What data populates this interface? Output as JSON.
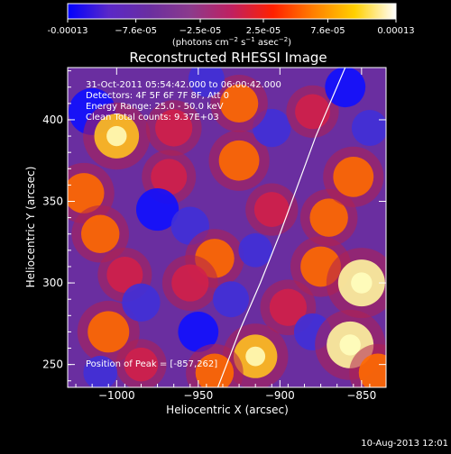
{
  "colorbar": {
    "tick_labels": [
      "-0.00013",
      "−7.6e-05",
      "−2.5e-05",
      "2.5e-05",
      "7.6e-05",
      "0.00013"
    ],
    "tick_values": [
      -0.00013,
      -7.6e-05,
      -2.5e-05,
      2.5e-05,
      7.6e-05,
      0.00013
    ],
    "range": [
      -0.00013,
      0.00013
    ],
    "units_prefix": "(photons cm",
    "units_exp1": "−2",
    "units_mid": " s",
    "units_exp2": "−1",
    "units_mid2": " asec",
    "units_exp3": "−2",
    "units_suffix": ")",
    "colors": [
      "#0000ff",
      "#5a28c8",
      "#6a2ea0",
      "#8c3a8c",
      "#c02060",
      "#ff2000",
      "#ff8000",
      "#ffd000",
      "#ffffff"
    ]
  },
  "chart_data": {
    "type": "heatmap",
    "title": "Reconstructed RHESSI Image",
    "xlabel": "Heliocentric X (arcsec)",
    "ylabel": "Heliocentric Y (arcsec)",
    "xlim": [
      -1030,
      -835
    ],
    "ylim": [
      236,
      432
    ],
    "x_ticks": [
      -1000,
      -950,
      -900,
      -850
    ],
    "x_tick_labels": [
      "−1000",
      "−950",
      "−900",
      "−850"
    ],
    "y_ticks": [
      250,
      300,
      350,
      400
    ],
    "y_tick_labels": [
      "250",
      "300",
      "350",
      "400"
    ],
    "annotations": [
      "31-Oct-2011 05:54:42.000 to 06:00:42.000",
      "Detectors: 4F 5F 6F 7F 8F, Att 0",
      "Energy Range: 25.0 - 50.0 keV",
      "Clean     Total counts: 9.37E+03"
    ],
    "peak_text": "Position of Peak = [-857,262]",
    "peak": [
      -857,
      262
    ],
    "limb_curve": [
      [
        -938,
        236
      ],
      [
        -925,
        270
      ],
      [
        -912,
        300
      ],
      [
        -900,
        330
      ],
      [
        -889,
        360
      ],
      [
        -878,
        390
      ],
      [
        -866,
        418
      ],
      [
        -860,
        432
      ]
    ],
    "blobs": [
      {
        "x": -1015,
        "y": 405,
        "a": -1.0
      },
      {
        "x": -1000,
        "y": 390,
        "a": 0.9
      },
      {
        "x": -1020,
        "y": 355,
        "a": 0.7
      },
      {
        "x": -1010,
        "y": 330,
        "a": 0.6
      },
      {
        "x": -995,
        "y": 305,
        "a": 0.5
      },
      {
        "x": -1005,
        "y": 270,
        "a": 0.75
      },
      {
        "x": -985,
        "y": 250,
        "a": 0.4
      },
      {
        "x": -965,
        "y": 395,
        "a": 0.55
      },
      {
        "x": -968,
        "y": 365,
        "a": 0.5
      },
      {
        "x": -975,
        "y": 345,
        "a": -0.8
      },
      {
        "x": -955,
        "y": 335,
        "a": -0.6
      },
      {
        "x": -940,
        "y": 315,
        "a": 0.65
      },
      {
        "x": -955,
        "y": 300,
        "a": 0.55
      },
      {
        "x": -930,
        "y": 290,
        "a": -0.5
      },
      {
        "x": -985,
        "y": 288,
        "a": -0.6
      },
      {
        "x": -950,
        "y": 270,
        "a": -0.7
      },
      {
        "x": -915,
        "y": 255,
        "a": 0.85
      },
      {
        "x": -940,
        "y": 245,
        "a": 0.6
      },
      {
        "x": -925,
        "y": 375,
        "a": 0.7
      },
      {
        "x": -905,
        "y": 395,
        "a": -0.6
      },
      {
        "x": -925,
        "y": 410,
        "a": 0.6
      },
      {
        "x": -905,
        "y": 345,
        "a": 0.45
      },
      {
        "x": -915,
        "y": 320,
        "a": -0.4
      },
      {
        "x": -875,
        "y": 310,
        "a": 0.7
      },
      {
        "x": -895,
        "y": 285,
        "a": 0.55
      },
      {
        "x": -880,
        "y": 270,
        "a": -0.55
      },
      {
        "x": -857,
        "y": 262,
        "a": 1.0
      },
      {
        "x": -850,
        "y": 300,
        "a": 1.0
      },
      {
        "x": -870,
        "y": 340,
        "a": 0.6
      },
      {
        "x": -855,
        "y": 365,
        "a": 0.7
      },
      {
        "x": -845,
        "y": 395,
        "a": -0.5
      },
      {
        "x": -880,
        "y": 405,
        "a": 0.45
      },
      {
        "x": -860,
        "y": 420,
        "a": -0.7
      },
      {
        "x": -840,
        "y": 245,
        "a": 0.6
      },
      {
        "x": -1010,
        "y": 245,
        "a": -0.4
      },
      {
        "x": -945,
        "y": 425,
        "a": -0.5
      }
    ]
  },
  "footer": {
    "timestamp": "10-Aug-2013 12:01"
  }
}
